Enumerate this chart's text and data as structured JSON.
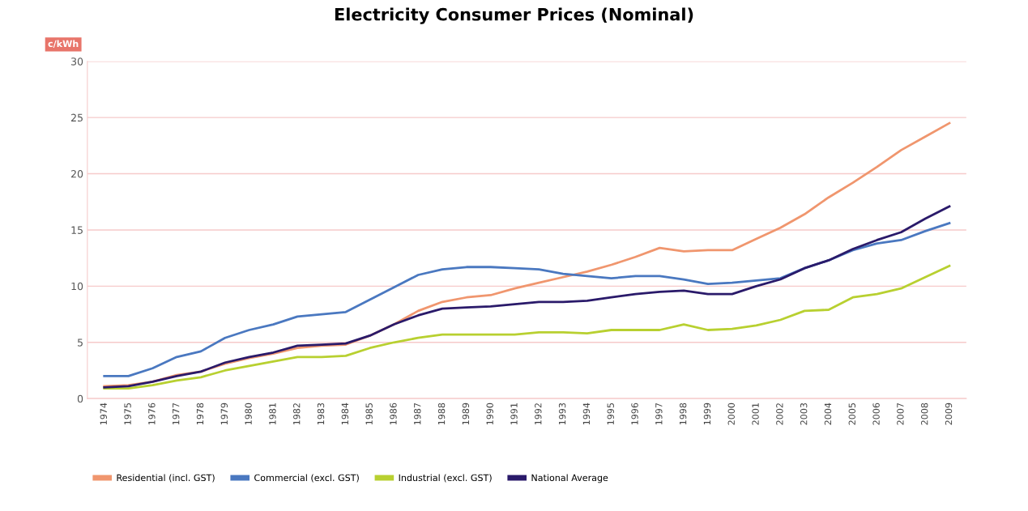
{
  "chart_data": {
    "type": "line",
    "title": "Electricity Consumer Prices (Nominal)",
    "ylabel": "c/kWh",
    "categories": [
      "1974",
      "1975",
      "1976",
      "1977",
      "1978",
      "1979",
      "1980",
      "1981",
      "1982",
      "1983",
      "1984",
      "1985",
      "1986",
      "1987",
      "1988",
      "1989",
      "1990",
      "1991",
      "1992",
      "1993",
      "1994",
      "1995",
      "1996",
      "1997",
      "1998",
      "1999",
      "2000",
      "2001",
      "2002",
      "2003",
      "2004",
      "2005",
      "2006",
      "2007",
      "2008",
      "2009"
    ],
    "series": [
      {
        "name": "Residential (incl. GST)",
        "color": "#f0966e",
        "values": [
          1.1,
          1.2,
          1.5,
          2.1,
          2.4,
          3.1,
          3.6,
          4.0,
          4.5,
          4.7,
          4.8,
          5.6,
          6.6,
          7.8,
          8.6,
          9.0,
          9.2,
          9.8,
          10.3,
          10.8,
          11.3,
          11.9,
          12.6,
          13.4,
          13.1,
          13.2,
          13.2,
          14.2,
          15.2,
          16.4,
          17.9,
          19.2,
          20.6,
          22.1,
          23.3,
          24.5
        ]
      },
      {
        "name": "Commercial (excl. GST)",
        "color": "#4a78c0",
        "values": [
          2.0,
          2.0,
          2.7,
          3.7,
          4.2,
          5.4,
          6.1,
          6.6,
          7.3,
          7.5,
          7.7,
          8.8,
          9.9,
          11.0,
          11.5,
          11.7,
          11.7,
          11.6,
          11.5,
          11.1,
          10.9,
          10.7,
          10.9,
          10.9,
          10.6,
          10.2,
          10.3,
          10.5,
          10.7,
          11.6,
          12.3,
          13.2,
          13.8,
          14.1,
          14.9,
          15.6
        ]
      },
      {
        "name": "Industrial (excl. GST)",
        "color": "#b8d030",
        "values": [
          0.9,
          0.9,
          1.2,
          1.6,
          1.9,
          2.5,
          2.9,
          3.3,
          3.7,
          3.7,
          3.8,
          4.5,
          5.0,
          5.4,
          5.7,
          5.7,
          5.7,
          5.7,
          5.9,
          5.9,
          5.8,
          6.1,
          6.1,
          6.1,
          6.6,
          6.1,
          6.2,
          6.5,
          7.0,
          7.8,
          7.9,
          9.0,
          9.3,
          9.8,
          10.8,
          11.8
        ]
      },
      {
        "name": "National Average",
        "color": "#2a1a6a",
        "values": [
          1.0,
          1.1,
          1.5,
          2.0,
          2.4,
          3.2,
          3.7,
          4.1,
          4.7,
          4.8,
          4.9,
          5.6,
          6.6,
          7.4,
          8.0,
          8.1,
          8.2,
          8.4,
          8.6,
          8.6,
          8.7,
          9.0,
          9.3,
          9.5,
          9.6,
          9.3,
          9.3,
          10.0,
          10.6,
          11.6,
          12.3,
          13.3,
          14.1,
          14.8,
          16.0,
          17.1
        ]
      }
    ],
    "ylim": [
      0,
      30
    ],
    "yticks": [
      0,
      5,
      10,
      15,
      20,
      25,
      30
    ],
    "grid": "y",
    "legend": "bottom"
  }
}
